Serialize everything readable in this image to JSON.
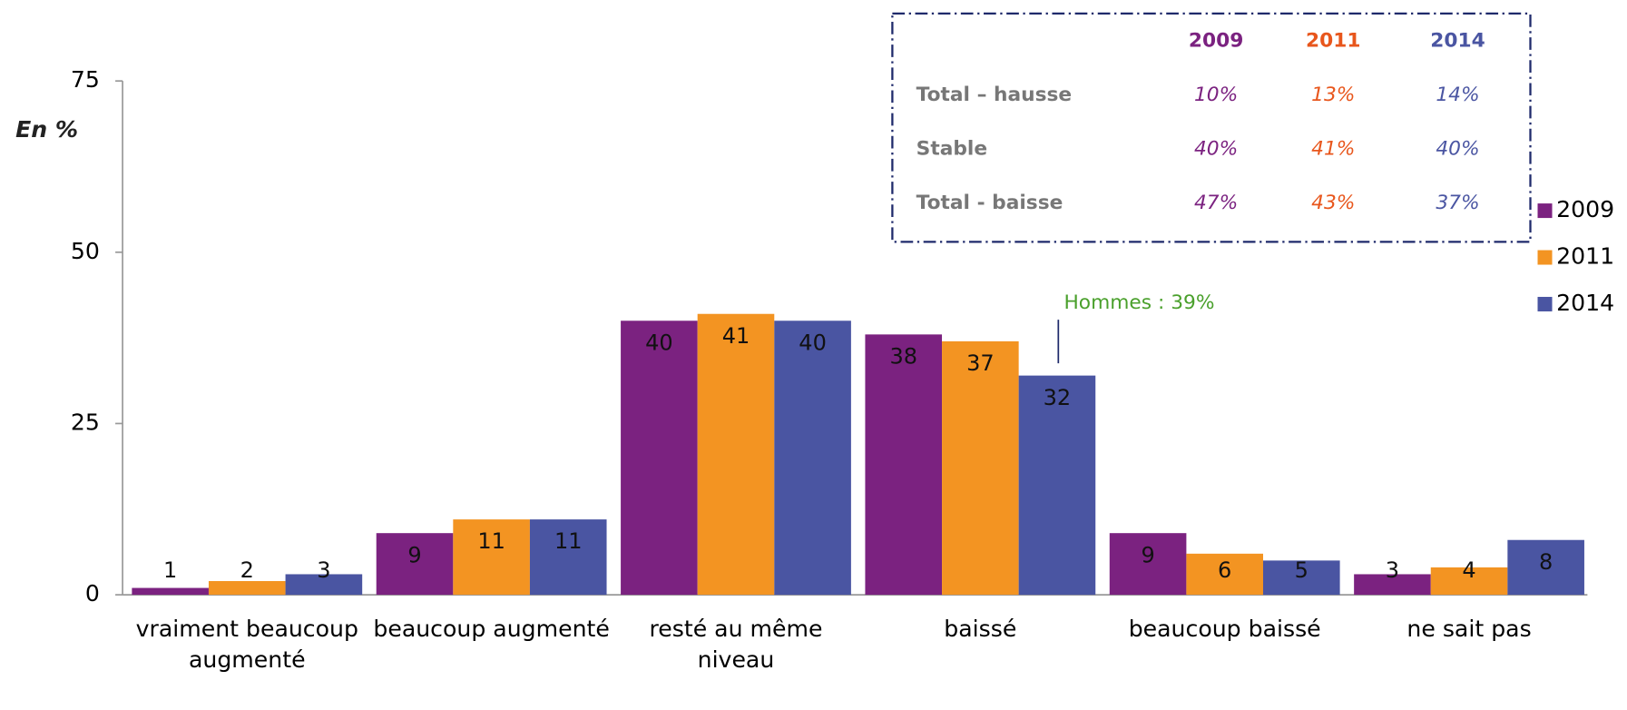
{
  "chart_data": {
    "type": "bar",
    "y_label": "En %",
    "categories": [
      "vraiment beaucoup augmenté",
      "beaucoup augmenté",
      "resté au même niveau",
      "baissé",
      "beaucoup baissé",
      "ne sait pas"
    ],
    "series": [
      {
        "name": "2009",
        "color": "#7b2280",
        "values": [
          1,
          9,
          40,
          38,
          9,
          3
        ]
      },
      {
        "name": "2011",
        "color": "#f39422",
        "values": [
          2,
          11,
          41,
          37,
          6,
          4
        ]
      },
      {
        "name": "2014",
        "color": "#4a55a2",
        "values": [
          3,
          11,
          40,
          32,
          5,
          8
        ]
      }
    ],
    "ylim": [
      0,
      75
    ],
    "yticks": [
      0,
      25,
      50,
      75
    ],
    "legend": "right",
    "annotations": [
      "Hommes : 39%"
    ],
    "table": {
      "columns": [
        "2009",
        "2011",
        "2014"
      ],
      "colors": [
        "#7b2280",
        "#e8561c",
        "#4a55a2"
      ],
      "rows": [
        {
          "label": "Total – hausse",
          "values": [
            "10%",
            "13%",
            "14%"
          ]
        },
        {
          "label": "Stable",
          "values": [
            "40%",
            "41%",
            "40%"
          ]
        },
        {
          "label": "Total - baisse",
          "values": [
            "47%",
            "43%",
            "37%"
          ]
        }
      ]
    }
  }
}
